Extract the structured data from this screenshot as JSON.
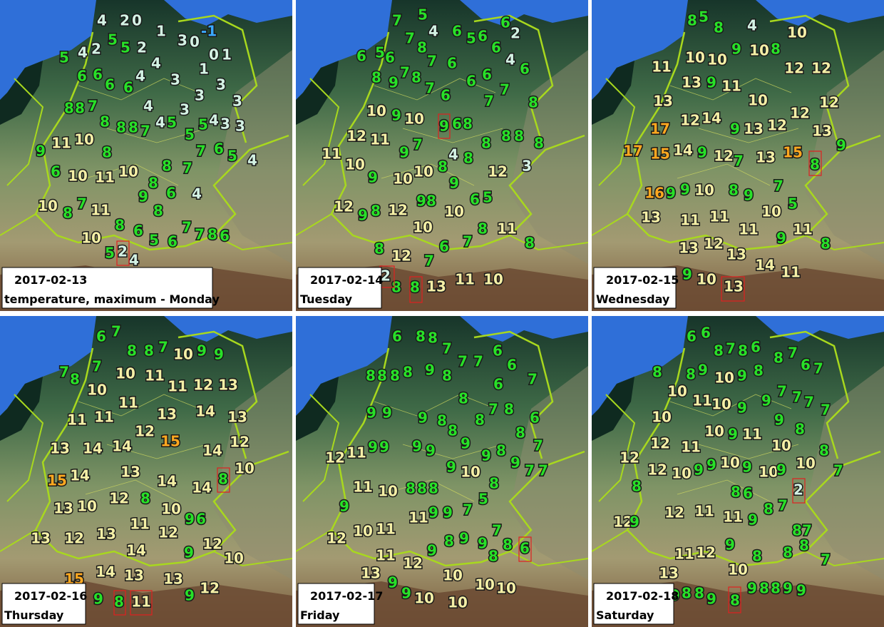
{
  "panels": [
    {
      "date": "2017-02-13",
      "label": "temperature, maximum - Monday",
      "stations": [
        4,
        2,
        0,
        1,
        5,
        5,
        2,
        4,
        2,
        5,
        3,
        0,
        -1,
        0,
        1,
        4,
        6,
        6,
        6,
        6,
        4,
        3,
        1,
        3,
        3,
        7,
        8,
        8,
        4,
        3,
        3,
        8,
        8,
        8,
        7,
        4,
        5,
        4,
        3,
        3,
        5,
        5,
        9,
        11,
        10,
        8,
        7,
        6,
        5,
        4,
        6,
        10,
        11,
        10,
        8,
        7,
        8,
        9,
        6,
        4,
        10,
        8,
        7,
        11,
        8,
        8,
        6,
        7,
        7,
        8,
        6,
        5,
        6,
        10,
        5,
        2,
        4
      ]
    },
    {
      "date": "2017-02-14",
      "label": "Tuesday",
      "stations": [
        7,
        5,
        7,
        8,
        4,
        6,
        5,
        6,
        6,
        2,
        6,
        5,
        6,
        6,
        7,
        8,
        7,
        6,
        4,
        6,
        8,
        9,
        6,
        6,
        7,
        6,
        7,
        7,
        8,
        10,
        9,
        10,
        9,
        6,
        8,
        12,
        11,
        7,
        9,
        11,
        10,
        8,
        8,
        8,
        8,
        4,
        8,
        8,
        9,
        10,
        10,
        9,
        12,
        3,
        12,
        9,
        8,
        12,
        9,
        8,
        10,
        6,
        5,
        10,
        8,
        7,
        6,
        11,
        8,
        8,
        12,
        7,
        2,
        8,
        8,
        13,
        11,
        10
      ]
    },
    {
      "date": "2017-02-15",
      "label": "Wednesday",
      "stations": [
        8,
        5,
        8,
        4,
        10,
        9,
        10,
        8,
        11,
        10,
        10,
        12,
        12,
        13,
        9,
        11,
        13,
        10,
        12,
        12,
        17,
        12,
        14,
        9,
        13,
        12,
        13,
        9,
        17,
        15,
        14,
        9,
        12,
        7,
        13,
        15,
        8,
        7,
        16,
        9,
        9,
        10,
        8,
        9,
        10,
        5,
        13,
        11,
        11,
        11,
        9,
        11,
        8,
        13,
        12,
        13,
        14,
        11,
        9,
        10,
        13
      ]
    },
    {
      "date": "2017-02-16",
      "label": "Thursday",
      "stations": [
        6,
        7,
        8,
        8,
        7,
        10,
        9,
        9,
        7,
        8,
        7,
        10,
        11,
        10,
        11,
        12,
        13,
        11,
        11,
        11,
        13,
        14,
        13,
        12,
        15,
        13,
        14,
        14,
        14,
        12,
        8,
        10,
        15,
        14,
        13,
        14,
        14,
        12,
        8,
        13,
        10,
        10,
        9,
        6,
        11,
        12,
        13,
        12,
        13,
        14,
        9,
        12,
        10,
        14,
        13,
        13,
        15,
        9,
        8,
        11,
        9,
        12
      ]
    },
    {
      "date": "2017-02-17",
      "label": "Friday",
      "stations": [
        6,
        8,
        8,
        7,
        7,
        7,
        6,
        6,
        7,
        8,
        8,
        8,
        8,
        9,
        8,
        6,
        8,
        7,
        8,
        6,
        9,
        9,
        9,
        8,
        8,
        9,
        8,
        8,
        7,
        12,
        11,
        9,
        9,
        9,
        9,
        8,
        9,
        9,
        7,
        7,
        9,
        10,
        8,
        5,
        11,
        10,
        8,
        8,
        8,
        11,
        9,
        9,
        7,
        9,
        12,
        10,
        11,
        7,
        9,
        8,
        9,
        9,
        8,
        8,
        6,
        11,
        12,
        10,
        10,
        10,
        9,
        9,
        10,
        10,
        13
      ]
    },
    {
      "date": "2017-02-18",
      "label": "Saturday",
      "stations": [
        6,
        6,
        8,
        7,
        8,
        6,
        8,
        7,
        6,
        7,
        8,
        8,
        9,
        10,
        9,
        8,
        10,
        11,
        10,
        9,
        9,
        7,
        7,
        7,
        7,
        10,
        9,
        8,
        10,
        9,
        11,
        10,
        8,
        12,
        12,
        11,
        12,
        10,
        9,
        9,
        10,
        9,
        10,
        9,
        10,
        7,
        8,
        8,
        6,
        2,
        7,
        8,
        9,
        12,
        11,
        11,
        8,
        7,
        12,
        9,
        8,
        8,
        7,
        9,
        8,
        11,
        12,
        10,
        9,
        8,
        8,
        9,
        8,
        9,
        8,
        8,
        9,
        9,
        13
      ]
    }
  ]
}
